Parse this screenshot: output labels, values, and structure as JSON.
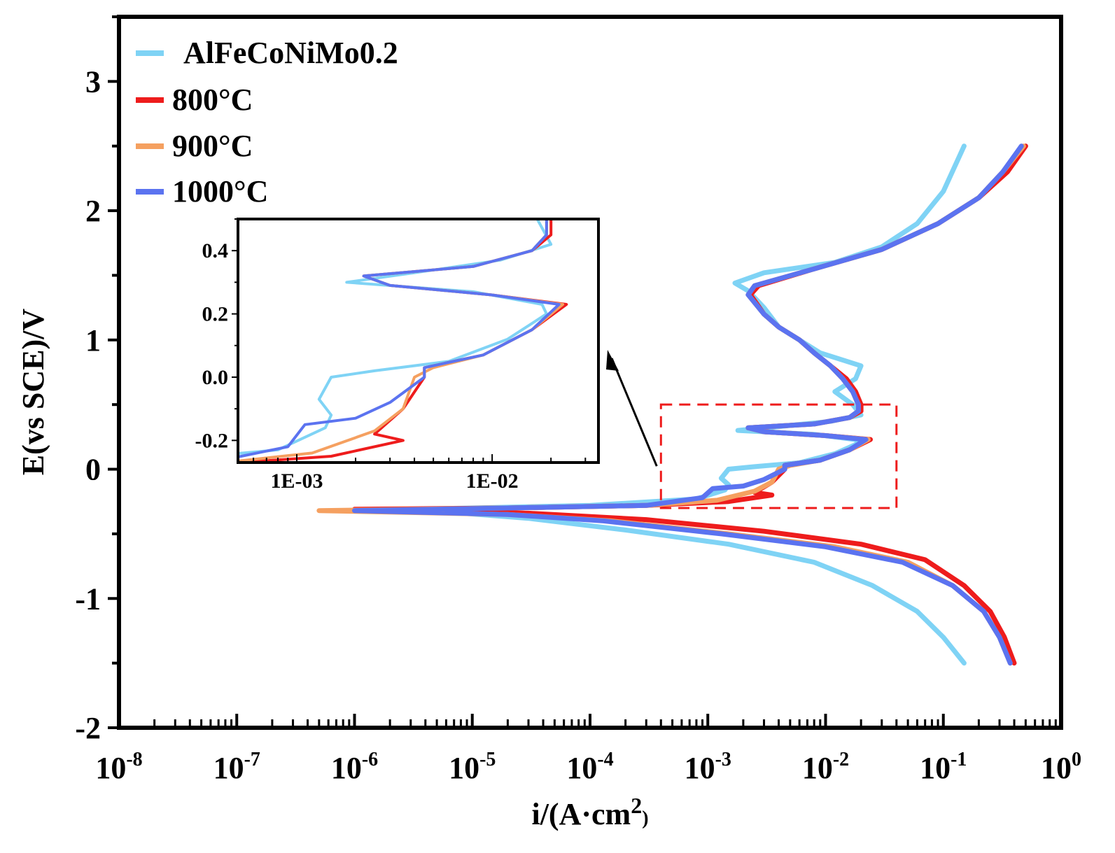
{
  "chart_data": {
    "type": "line",
    "title": "",
    "xlabel": "i/(A·cm2)",
    "xlabel_main": "i/(A·cm",
    "xlabel_sup": "2",
    "xlabel_close": ")",
    "ylabel": "E(vs SCE)/V",
    "xscale": "log",
    "xlim": [
      1e-08,
      1
    ],
    "ylim": [
      -2,
      3.5
    ],
    "x_tick_labels": [
      {
        "base": "10",
        "exp": "-8"
      },
      {
        "base": "10",
        "exp": "-7"
      },
      {
        "base": "10",
        "exp": "-6"
      },
      {
        "base": "10",
        "exp": "-5"
      },
      {
        "base": "10",
        "exp": "-4"
      },
      {
        "base": "10",
        "exp": "-3"
      },
      {
        "base": "10",
        "exp": "-2"
      },
      {
        "base": "10",
        "exp": "-1"
      },
      {
        "base": "10",
        "exp": "0"
      }
    ],
    "y_ticks": [
      -2,
      -1,
      0,
      1,
      2,
      3
    ],
    "y_tick_labels": [
      "-2",
      "-1",
      "0",
      "1",
      "2",
      "3"
    ],
    "legend_position": "top-left",
    "series": [
      {
        "name": "AlFeCoNiMo0.2",
        "color": "#7fd3f5",
        "points": [
          [
            0.15,
            -1.5
          ],
          [
            0.1,
            -1.3
          ],
          [
            0.06,
            -1.1
          ],
          [
            0.025,
            -0.9
          ],
          [
            0.008,
            -0.72
          ],
          [
            0.0015,
            -0.58
          ],
          [
            0.0002,
            -0.47
          ],
          [
            3e-05,
            -0.38
          ],
          [
            3e-06,
            -0.31
          ],
          [
            0.0001,
            -0.28
          ],
          [
            0.0008,
            -0.23
          ],
          [
            0.0014,
            -0.16
          ],
          [
            0.0015,
            -0.12
          ],
          [
            0.0013,
            -0.07
          ],
          [
            0.0015,
            0.0
          ],
          [
            0.0025,
            0.02
          ],
          [
            0.006,
            0.05
          ],
          [
            0.012,
            0.12
          ],
          [
            0.019,
            0.2
          ],
          [
            0.018,
            0.23
          ],
          [
            0.008,
            0.27
          ],
          [
            0.0018,
            0.3
          ],
          [
            0.004,
            0.33
          ],
          [
            0.011,
            0.37
          ],
          [
            0.02,
            0.42
          ],
          [
            0.017,
            0.5
          ],
          [
            0.012,
            0.6
          ],
          [
            0.018,
            0.7
          ],
          [
            0.02,
            0.8
          ],
          [
            0.009,
            0.9
          ],
          [
            0.006,
            1.0
          ],
          [
            0.004,
            1.1
          ],
          [
            0.003,
            1.25
          ],
          [
            0.0022,
            1.38
          ],
          [
            0.0017,
            1.44
          ],
          [
            0.003,
            1.52
          ],
          [
            0.012,
            1.6
          ],
          [
            0.03,
            1.72
          ],
          [
            0.06,
            1.9
          ],
          [
            0.1,
            2.15
          ],
          [
            0.15,
            2.5
          ]
        ]
      },
      {
        "name": "800°C",
        "color": "#ee1c1c",
        "points": [
          [
            0.4,
            -1.5
          ],
          [
            0.33,
            -1.3
          ],
          [
            0.25,
            -1.1
          ],
          [
            0.15,
            -0.9
          ],
          [
            0.07,
            -0.7
          ],
          [
            0.02,
            -0.58
          ],
          [
            0.003,
            -0.48
          ],
          [
            0.0003,
            -0.39
          ],
          [
            3e-05,
            -0.34
          ],
          [
            1e-06,
            -0.31
          ],
          [
            2e-05,
            -0.3
          ],
          [
            0.0003,
            -0.28
          ],
          [
            0.0015,
            -0.25
          ],
          [
            0.0035,
            -0.2
          ],
          [
            0.0025,
            -0.18
          ],
          [
            0.0035,
            -0.1
          ],
          [
            0.0045,
            0.0
          ],
          [
            0.0045,
            0.03
          ],
          [
            0.009,
            0.07
          ],
          [
            0.016,
            0.15
          ],
          [
            0.024,
            0.23
          ],
          [
            0.01,
            0.26
          ],
          [
            0.003,
            0.29
          ],
          [
            0.0022,
            0.32
          ],
          [
            0.008,
            0.35
          ],
          [
            0.016,
            0.4
          ],
          [
            0.02,
            0.45
          ],
          [
            0.02,
            0.5
          ],
          [
            0.018,
            0.6
          ],
          [
            0.015,
            0.7
          ],
          [
            0.011,
            0.8
          ],
          [
            0.008,
            0.9
          ],
          [
            0.006,
            1.0
          ],
          [
            0.004,
            1.1
          ],
          [
            0.003,
            1.2
          ],
          [
            0.0023,
            1.35
          ],
          [
            0.0027,
            1.42
          ],
          [
            0.008,
            1.55
          ],
          [
            0.03,
            1.7
          ],
          [
            0.09,
            1.9
          ],
          [
            0.2,
            2.1
          ],
          [
            0.35,
            2.3
          ],
          [
            0.5,
            2.5
          ]
        ]
      },
      {
        "name": "900°C",
        "color": "#f5a060",
        "points": [
          [
            0.37,
            -1.5
          ],
          [
            0.3,
            -1.3
          ],
          [
            0.22,
            -1.1
          ],
          [
            0.12,
            -0.9
          ],
          [
            0.05,
            -0.72
          ],
          [
            0.012,
            -0.6
          ],
          [
            0.0015,
            -0.5
          ],
          [
            0.00015,
            -0.4
          ],
          [
            2e-05,
            -0.35
          ],
          [
            5e-07,
            -0.32
          ],
          [
            2e-05,
            -0.3
          ],
          [
            0.0003,
            -0.28
          ],
          [
            0.0012,
            -0.24
          ],
          [
            0.0025,
            -0.17
          ],
          [
            0.0035,
            -0.1
          ],
          [
            0.004,
            0.0
          ],
          [
            0.005,
            0.03
          ],
          [
            0.009,
            0.07
          ],
          [
            0.016,
            0.15
          ],
          [
            0.023,
            0.23
          ],
          [
            0.01,
            0.26
          ],
          [
            0.003,
            0.29
          ],
          [
            0.0022,
            0.32
          ],
          [
            0.008,
            0.35
          ],
          [
            0.016,
            0.4
          ],
          [
            0.019,
            0.45
          ],
          [
            0.019,
            0.5
          ],
          [
            0.017,
            0.6
          ],
          [
            0.014,
            0.7
          ],
          [
            0.011,
            0.8
          ],
          [
            0.008,
            0.9
          ],
          [
            0.006,
            1.0
          ],
          [
            0.004,
            1.1
          ],
          [
            0.003,
            1.2
          ],
          [
            0.0022,
            1.35
          ],
          [
            0.0025,
            1.42
          ],
          [
            0.008,
            1.55
          ],
          [
            0.03,
            1.7
          ],
          [
            0.09,
            1.9
          ],
          [
            0.2,
            2.1
          ],
          [
            0.32,
            2.3
          ],
          [
            0.48,
            2.5
          ]
        ]
      },
      {
        "name": "1000°C",
        "color": "#5b73f0",
        "points": [
          [
            0.37,
            -1.5
          ],
          [
            0.3,
            -1.3
          ],
          [
            0.22,
            -1.1
          ],
          [
            0.12,
            -0.9
          ],
          [
            0.045,
            -0.72
          ],
          [
            0.01,
            -0.6
          ],
          [
            0.0013,
            -0.5
          ],
          [
            0.00013,
            -0.4
          ],
          [
            2e-05,
            -0.35
          ],
          [
            1e-06,
            -0.32
          ],
          [
            2e-05,
            -0.3
          ],
          [
            0.0003,
            -0.28
          ],
          [
            0.0009,
            -0.22
          ],
          [
            0.0011,
            -0.15
          ],
          [
            0.002,
            -0.13
          ],
          [
            0.003,
            -0.08
          ],
          [
            0.0045,
            0.0
          ],
          [
            0.0045,
            0.03
          ],
          [
            0.009,
            0.07
          ],
          [
            0.016,
            0.15
          ],
          [
            0.022,
            0.23
          ],
          [
            0.01,
            0.26
          ],
          [
            0.003,
            0.29
          ],
          [
            0.0022,
            0.32
          ],
          [
            0.008,
            0.35
          ],
          [
            0.016,
            0.4
          ],
          [
            0.019,
            0.45
          ],
          [
            0.019,
            0.5
          ],
          [
            0.017,
            0.6
          ],
          [
            0.014,
            0.7
          ],
          [
            0.011,
            0.8
          ],
          [
            0.008,
            0.9
          ],
          [
            0.006,
            1.0
          ],
          [
            0.004,
            1.1
          ],
          [
            0.003,
            1.2
          ],
          [
            0.0022,
            1.35
          ],
          [
            0.0025,
            1.42
          ],
          [
            0.008,
            1.55
          ],
          [
            0.03,
            1.7
          ],
          [
            0.09,
            1.9
          ],
          [
            0.2,
            2.1
          ],
          [
            0.32,
            2.3
          ],
          [
            0.46,
            2.5
          ]
        ]
      }
    ],
    "zoom_box": {
      "xlim": [
        0.0004,
        0.04
      ],
      "ylim": [
        -0.3,
        0.5
      ],
      "color": "#ee1c1c"
    },
    "inset": {
      "xscale": "log",
      "xlim": [
        0.0005,
        0.035
      ],
      "ylim": [
        -0.27,
        0.5
      ],
      "x_tick_labels": [
        "1E-03",
        "1E-02"
      ],
      "x_ticks": [
        0.001,
        0.01
      ],
      "y_ticks": [
        -0.2,
        0.0,
        0.2,
        0.4
      ],
      "y_tick_labels": [
        "-0.2",
        "0.0",
        "0.2",
        "0.4"
      ]
    }
  }
}
